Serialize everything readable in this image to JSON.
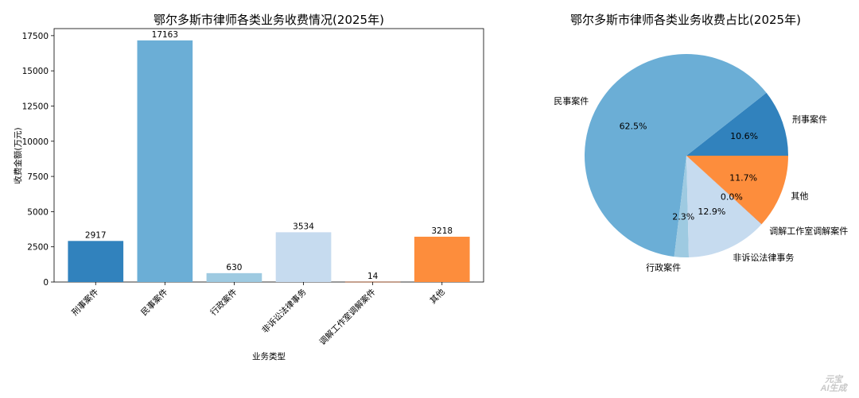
{
  "chart_data": [
    {
      "type": "bar",
      "title": "鄂尔多斯市律师各类业务收费情况(2025年)",
      "xlabel": "业务类型",
      "ylabel": "收费金额(万元)",
      "categories": [
        "刑事案件",
        "民事案件",
        "行政案件",
        "非诉讼法律事务",
        "调解工作室调解案件",
        "其他"
      ],
      "values": [
        2917,
        17163,
        630,
        3534,
        14,
        3218
      ],
      "colors": [
        "#3182bd",
        "#6baed6",
        "#9ecae1",
        "#c6dbef",
        "#e6550d",
        "#fd8d3c"
      ],
      "ylim": [
        0,
        18000
      ],
      "yticks": [
        0,
        2500,
        5000,
        7500,
        10000,
        12500,
        15000,
        17500
      ],
      "grid": false
    },
    {
      "type": "pie",
      "title": "鄂尔多斯市律师各类业务收费占比(2025年)",
      "labels": [
        "刑事案件",
        "民事案件",
        "行政案件",
        "非诉讼法律事务",
        "调解工作室调解案件",
        "其他"
      ],
      "values": [
        2917,
        17163,
        630,
        3534,
        14,
        3218
      ],
      "percent_labels": [
        "10.6%",
        "62.5%",
        "2.3%",
        "12.9%",
        "0.0%",
        "11.7%"
      ],
      "colors": [
        "#3182bd",
        "#6baed6",
        "#9ecae1",
        "#c6dbef",
        "#e6550d",
        "#fd8d3c"
      ]
    }
  ],
  "watermark": {
    "line1": "元宝",
    "line2": "AI生成"
  }
}
